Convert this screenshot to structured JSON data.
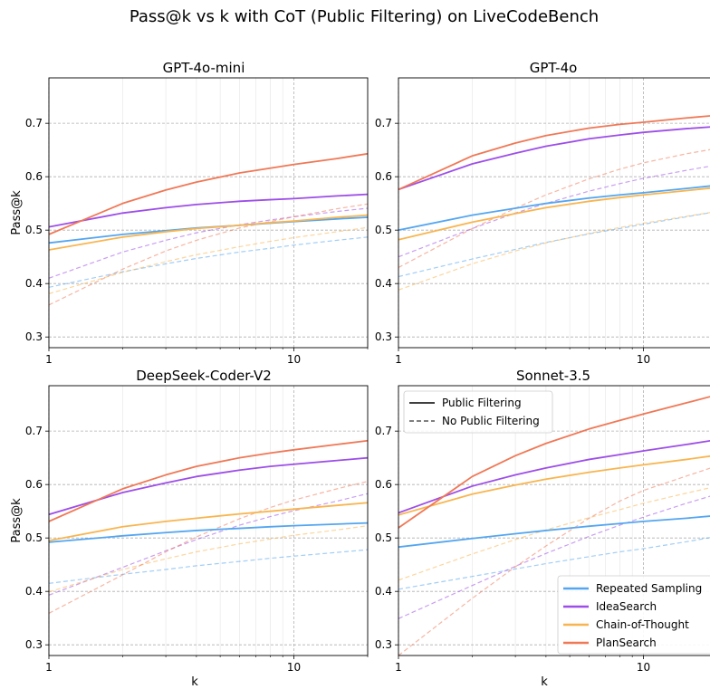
{
  "title": "Pass@k vs k with CoT (Public Filtering) on LiveCodeBench",
  "colors": {
    "Repeated Sampling": "#54a6f0",
    "IdeaSearch": "#9d4ee8",
    "Chain-of-Thought": "#f8b54f",
    "PlanSearch": "#f07856"
  },
  "line_legend": [
    "Public Filtering",
    "No Public Filtering"
  ],
  "chart_data": [
    {
      "type": "line",
      "title": "GPT-4o-mini",
      "xlabel": "",
      "ylabel": "Pass@k",
      "xscale": "log",
      "xlim": [
        1,
        20
      ],
      "ylim": [
        0.28,
        0.785
      ],
      "xticks": [
        1,
        10
      ],
      "yticks": [
        0.3,
        0.4,
        0.5,
        0.6,
        0.7
      ],
      "grid": true,
      "x": [
        1,
        2,
        3,
        4,
        6,
        8,
        10,
        15,
        20
      ],
      "series": [
        {
          "name": "Repeated Sampling",
          "style": "solid",
          "values": [
            0.476,
            0.492,
            0.499,
            0.504,
            0.509,
            0.513,
            0.516,
            0.521,
            0.524
          ]
        },
        {
          "name": "IdeaSearch",
          "style": "solid",
          "values": [
            0.506,
            0.532,
            0.542,
            0.548,
            0.554,
            0.557,
            0.559,
            0.564,
            0.567
          ]
        },
        {
          "name": "Chain-of-Thought",
          "style": "solid",
          "values": [
            0.463,
            0.487,
            0.497,
            0.503,
            0.509,
            0.514,
            0.517,
            0.524,
            0.528
          ]
        },
        {
          "name": "PlanSearch",
          "style": "solid",
          "values": [
            0.492,
            0.55,
            0.575,
            0.59,
            0.607,
            0.616,
            0.623,
            0.634,
            0.643
          ]
        },
        {
          "name": "Repeated Sampling",
          "style": "dashed",
          "values": [
            0.393,
            0.422,
            0.437,
            0.447,
            0.459,
            0.466,
            0.472,
            0.481,
            0.487
          ]
        },
        {
          "name": "IdeaSearch",
          "style": "dashed",
          "values": [
            0.41,
            0.459,
            0.481,
            0.495,
            0.51,
            0.519,
            0.525,
            0.535,
            0.541
          ]
        },
        {
          "name": "Chain-of-Thought",
          "style": "dashed",
          "values": [
            0.381,
            0.421,
            0.441,
            0.454,
            0.469,
            0.479,
            0.486,
            0.497,
            0.505
          ]
        },
        {
          "name": "PlanSearch",
          "style": "dashed",
          "values": [
            0.36,
            0.427,
            0.461,
            0.481,
            0.504,
            0.516,
            0.525,
            0.54,
            0.549
          ]
        }
      ]
    },
    {
      "type": "line",
      "title": "GPT-4o",
      "xlabel": "",
      "ylabel": "",
      "xscale": "log",
      "xlim": [
        1,
        20
      ],
      "ylim": [
        0.28,
        0.785
      ],
      "xticks": [
        1,
        10
      ],
      "yticks": [
        0.3,
        0.4,
        0.5,
        0.6,
        0.7
      ],
      "grid": true,
      "x": [
        1,
        2,
        3,
        4,
        6,
        8,
        10,
        15,
        20
      ],
      "series": [
        {
          "name": "Repeated Sampling",
          "style": "solid",
          "values": [
            0.5,
            0.528,
            0.541,
            0.55,
            0.56,
            0.566,
            0.57,
            0.578,
            0.584
          ]
        },
        {
          "name": "IdeaSearch",
          "style": "solid",
          "values": [
            0.576,
            0.624,
            0.644,
            0.657,
            0.671,
            0.678,
            0.683,
            0.69,
            0.694
          ]
        },
        {
          "name": "Chain-of-Thought",
          "style": "solid",
          "values": [
            0.482,
            0.515,
            0.531,
            0.542,
            0.554,
            0.561,
            0.566,
            0.574,
            0.58
          ]
        },
        {
          "name": "PlanSearch",
          "style": "solid",
          "values": [
            0.576,
            0.639,
            0.663,
            0.677,
            0.691,
            0.698,
            0.702,
            0.71,
            0.715
          ]
        },
        {
          "name": "Repeated Sampling",
          "style": "dashed",
          "values": [
            0.413,
            0.446,
            0.464,
            0.477,
            0.493,
            0.503,
            0.511,
            0.525,
            0.535
          ]
        },
        {
          "name": "IdeaSearch",
          "style": "dashed",
          "values": [
            0.45,
            0.503,
            0.532,
            0.55,
            0.573,
            0.587,
            0.597,
            0.612,
            0.622
          ]
        },
        {
          "name": "Chain-of-Thought",
          "style": "dashed",
          "values": [
            0.388,
            0.437,
            0.461,
            0.476,
            0.494,
            0.505,
            0.513,
            0.526,
            0.535
          ]
        },
        {
          "name": "PlanSearch",
          "style": "dashed",
          "values": [
            0.43,
            0.503,
            0.541,
            0.566,
            0.596,
            0.614,
            0.626,
            0.643,
            0.653
          ]
        }
      ]
    },
    {
      "type": "line",
      "title": "DeepSeek-Coder-V2",
      "xlabel": "k",
      "ylabel": "Pass@k",
      "xscale": "log",
      "xlim": [
        1,
        20
      ],
      "ylim": [
        0.28,
        0.785
      ],
      "xticks": [
        1,
        10
      ],
      "yticks": [
        0.3,
        0.4,
        0.5,
        0.6,
        0.7
      ],
      "grid": true,
      "x": [
        1,
        2,
        3,
        4,
        6,
        8,
        10,
        15,
        20
      ],
      "series": [
        {
          "name": "Repeated Sampling",
          "style": "solid",
          "values": [
            0.492,
            0.504,
            0.51,
            0.514,
            0.518,
            0.521,
            0.523,
            0.526,
            0.528
          ]
        },
        {
          "name": "IdeaSearch",
          "style": "solid",
          "values": [
            0.544,
            0.585,
            0.603,
            0.615,
            0.627,
            0.634,
            0.638,
            0.645,
            0.65
          ]
        },
        {
          "name": "Chain-of-Thought",
          "style": "solid",
          "values": [
            0.495,
            0.521,
            0.531,
            0.537,
            0.545,
            0.55,
            0.554,
            0.561,
            0.566
          ]
        },
        {
          "name": "PlanSearch",
          "style": "solid",
          "values": [
            0.531,
            0.592,
            0.618,
            0.634,
            0.65,
            0.659,
            0.665,
            0.675,
            0.682
          ]
        },
        {
          "name": "Repeated Sampling",
          "style": "dashed",
          "values": [
            0.415,
            0.432,
            0.441,
            0.448,
            0.456,
            0.462,
            0.466,
            0.473,
            0.478
          ]
        },
        {
          "name": "IdeaSearch",
          "style": "dashed",
          "values": [
            0.393,
            0.445,
            0.476,
            0.497,
            0.524,
            0.54,
            0.551,
            0.569,
            0.583
          ]
        },
        {
          "name": "Chain-of-Thought",
          "style": "dashed",
          "values": [
            0.399,
            0.441,
            0.461,
            0.474,
            0.489,
            0.498,
            0.505,
            0.515,
            0.523
          ]
        },
        {
          "name": "PlanSearch",
          "style": "dashed",
          "values": [
            0.359,
            0.431,
            0.474,
            0.502,
            0.536,
            0.557,
            0.571,
            0.592,
            0.606
          ]
        }
      ]
    },
    {
      "type": "line",
      "title": "Sonnet-3.5",
      "xlabel": "k",
      "ylabel": "",
      "xscale": "log",
      "xlim": [
        1,
        20
      ],
      "ylim": [
        0.28,
        0.785
      ],
      "xticks": [
        1,
        10
      ],
      "yticks": [
        0.3,
        0.4,
        0.5,
        0.6,
        0.7
      ],
      "grid": true,
      "x": [
        1,
        2,
        3,
        4,
        6,
        8,
        10,
        15,
        20
      ],
      "series": [
        {
          "name": "Repeated Sampling",
          "style": "solid",
          "values": [
            0.483,
            0.499,
            0.508,
            0.514,
            0.522,
            0.527,
            0.531,
            0.537,
            0.542
          ]
        },
        {
          "name": "IdeaSearch",
          "style": "solid",
          "values": [
            0.547,
            0.597,
            0.618,
            0.631,
            0.647,
            0.656,
            0.663,
            0.675,
            0.684
          ]
        },
        {
          "name": "Chain-of-Thought",
          "style": "solid",
          "values": [
            0.543,
            0.582,
            0.599,
            0.61,
            0.623,
            0.631,
            0.637,
            0.647,
            0.655
          ]
        },
        {
          "name": "PlanSearch",
          "style": "solid",
          "values": [
            0.519,
            0.615,
            0.654,
            0.677,
            0.704,
            0.72,
            0.732,
            0.753,
            0.768
          ]
        },
        {
          "name": "Repeated Sampling",
          "style": "dashed",
          "values": [
            0.404,
            0.428,
            0.442,
            0.452,
            0.465,
            0.474,
            0.48,
            0.493,
            0.503
          ]
        },
        {
          "name": "IdeaSearch",
          "style": "dashed",
          "values": [
            0.349,
            0.411,
            0.447,
            0.471,
            0.503,
            0.524,
            0.539,
            0.565,
            0.582
          ]
        },
        {
          "name": "Chain-of-Thought",
          "style": "dashed",
          "values": [
            0.421,
            0.47,
            0.497,
            0.515,
            0.538,
            0.553,
            0.565,
            0.584,
            0.597
          ]
        },
        {
          "name": "PlanSearch",
          "style": "dashed",
          "values": [
            0.28,
            0.387,
            0.446,
            0.485,
            0.537,
            0.569,
            0.589,
            0.616,
            0.635
          ]
        }
      ]
    }
  ]
}
